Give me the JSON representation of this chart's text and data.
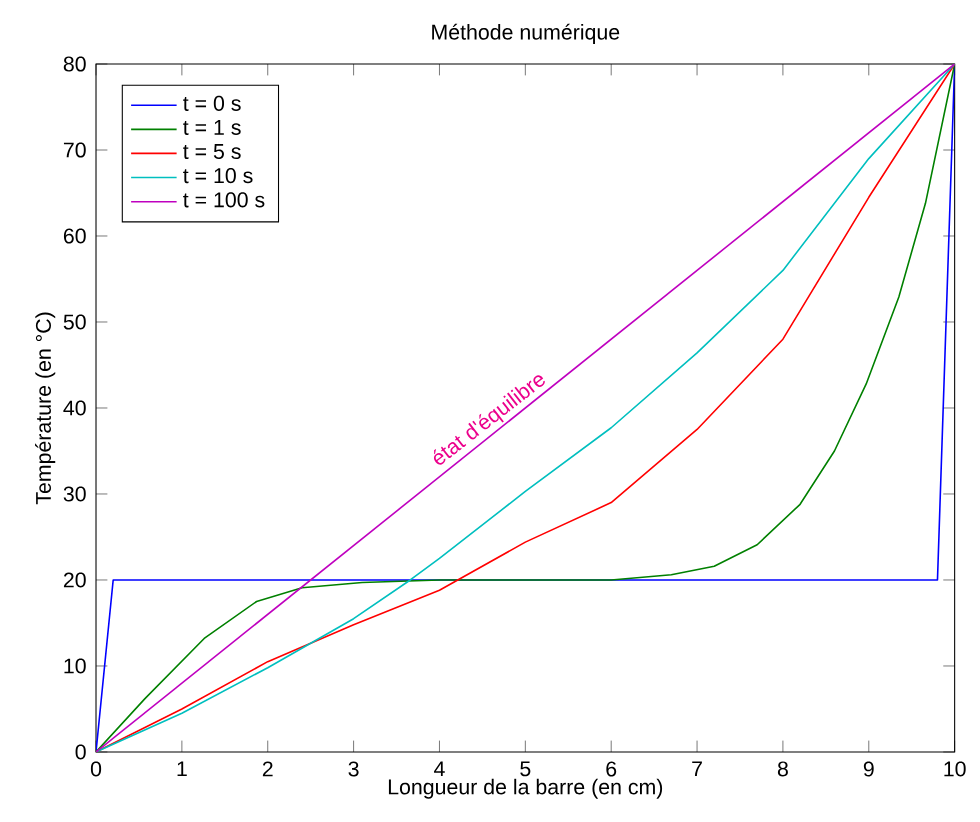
{
  "chart_data": {
    "type": "line",
    "title": "Méthode numérique",
    "xlabel": "Longueur de la barre (en cm)",
    "ylabel": "Température (en °C)",
    "xlim": [
      0,
      10
    ],
    "ylim": [
      0,
      80
    ],
    "xticks": [
      0,
      1,
      2,
      3,
      4,
      5,
      6,
      7,
      8,
      9,
      10
    ],
    "yticks": [
      0,
      10,
      20,
      30,
      40,
      50,
      60,
      70,
      80
    ],
    "grid": false,
    "legend": "top left",
    "marker": "none",
    "line_style": "solid",
    "annotations": [
      "état d'équilibre"
    ],
    "series": [
      {
        "name": "t = 0 s",
        "color": "#0000ff",
        "x": [
          0,
          0.2,
          9.8,
          10
        ],
        "values": [
          0,
          20,
          20,
          80
        ]
      },
      {
        "name": "t = 1 s",
        "color": "#008000",
        "x": [
          0,
          0.57,
          1.26,
          1.87,
          2.4,
          3.1,
          4,
          6,
          6.7,
          7.2,
          7.7,
          8.2,
          8.6,
          8.97,
          9.35,
          9.66,
          10
        ],
        "values": [
          0,
          6.2,
          13.2,
          17.5,
          19.1,
          19.7,
          20,
          20,
          20.6,
          21.6,
          24.1,
          28.8,
          35,
          42.8,
          52.9,
          63.8,
          80
        ]
      },
      {
        "name": "t = 5 s",
        "color": "#ff0000",
        "x": [
          0,
          1,
          2,
          3,
          4,
          5,
          6,
          7,
          8,
          9,
          10
        ],
        "values": [
          0,
          5,
          10.5,
          14.8,
          18.8,
          24.4,
          29,
          37.5,
          48,
          64.5,
          80
        ]
      },
      {
        "name": "t = 10 s",
        "color": "#00bfbf",
        "x": [
          0,
          1,
          2,
          3,
          3.66,
          4,
          5,
          6,
          7,
          8,
          9,
          10
        ],
        "values": [
          0,
          4.5,
          9.8,
          15.5,
          20,
          22.5,
          30.3,
          37.7,
          46.4,
          56,
          69,
          80
        ]
      },
      {
        "name": "t = 100 s",
        "color": "#bf00bf",
        "x": [
          0,
          10
        ],
        "values": [
          0,
          80
        ]
      }
    ]
  }
}
